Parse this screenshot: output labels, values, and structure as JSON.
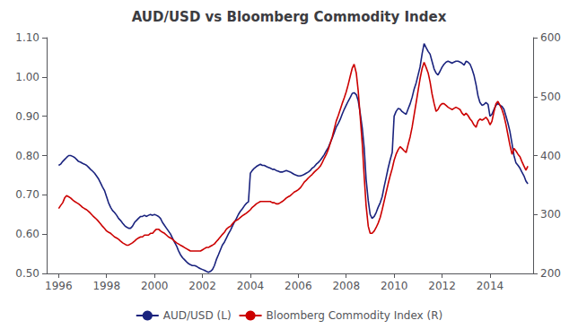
{
  "chart_data": {
    "type": "line",
    "title": "AUD/USD vs Bloomberg Commodity Index",
    "x": [
      1996.0,
      1996.08,
      1996.17,
      1996.25,
      1996.33,
      1996.42,
      1996.5,
      1996.58,
      1996.67,
      1996.75,
      1996.83,
      1996.92,
      1997.0,
      1997.08,
      1997.17,
      1997.25,
      1997.33,
      1997.42,
      1997.5,
      1997.58,
      1997.67,
      1997.75,
      1997.83,
      1997.92,
      1998.0,
      1998.08,
      1998.17,
      1998.25,
      1998.33,
      1998.42,
      1998.5,
      1998.58,
      1998.67,
      1998.75,
      1998.83,
      1998.92,
      1999.0,
      1999.08,
      1999.17,
      1999.25,
      1999.33,
      1999.42,
      1999.5,
      1999.58,
      1999.67,
      1999.75,
      1999.83,
      1999.92,
      2000.0,
      2000.08,
      2000.17,
      2000.25,
      2000.33,
      2000.42,
      2000.5,
      2000.58,
      2000.67,
      2000.75,
      2000.83,
      2000.92,
      2001.0,
      2001.08,
      2001.17,
      2001.25,
      2001.33,
      2001.42,
      2001.5,
      2001.58,
      2001.67,
      2001.75,
      2001.83,
      2001.92,
      2002.0,
      2002.08,
      2002.17,
      2002.25,
      2002.33,
      2002.42,
      2002.5,
      2002.58,
      2002.67,
      2002.75,
      2002.83,
      2002.92,
      2003.0,
      2003.08,
      2003.17,
      2003.25,
      2003.33,
      2003.42,
      2003.5,
      2003.58,
      2003.67,
      2003.75,
      2003.83,
      2003.92,
      2004.0,
      2004.08,
      2004.17,
      2004.25,
      2004.33,
      2004.42,
      2004.5,
      2004.58,
      2004.67,
      2004.75,
      2004.83,
      2004.92,
      2005.0,
      2005.08,
      2005.17,
      2005.25,
      2005.33,
      2005.42,
      2005.5,
      2005.58,
      2005.67,
      2005.75,
      2005.83,
      2005.92,
      2006.0,
      2006.08,
      2006.17,
      2006.25,
      2006.33,
      2006.42,
      2006.5,
      2006.58,
      2006.67,
      2006.75,
      2006.83,
      2006.92,
      2007.0,
      2007.08,
      2007.17,
      2007.25,
      2007.33,
      2007.42,
      2007.5,
      2007.58,
      2007.67,
      2007.75,
      2007.83,
      2007.92,
      2008.0,
      2008.08,
      2008.17,
      2008.25,
      2008.33,
      2008.42,
      2008.5,
      2008.58,
      2008.67,
      2008.75,
      2008.83,
      2008.92,
      2009.0,
      2009.08,
      2009.17,
      2009.25,
      2009.33,
      2009.42,
      2009.5,
      2009.58,
      2009.67,
      2009.75,
      2009.83,
      2009.92,
      2010.0,
      2010.08,
      2010.17,
      2010.25,
      2010.33,
      2010.42,
      2010.5,
      2010.58,
      2010.67,
      2010.75,
      2010.83,
      2010.92,
      2011.0,
      2011.08,
      2011.17,
      2011.25,
      2011.33,
      2011.42,
      2011.5,
      2011.58,
      2011.67,
      2011.75,
      2011.83,
      2011.92,
      2012.0,
      2012.08,
      2012.17,
      2012.25,
      2012.33,
      2012.42,
      2012.5,
      2012.58,
      2012.67,
      2012.75,
      2012.83,
      2012.92,
      2013.0,
      2013.08,
      2013.17,
      2013.25,
      2013.33,
      2013.42,
      2013.5,
      2013.58,
      2013.67,
      2013.75,
      2013.83,
      2013.92,
      2014.0,
      2014.08,
      2014.17,
      2014.25,
      2014.33,
      2014.42,
      2014.5,
      2014.58,
      2014.67,
      2014.75,
      2014.83,
      2014.92,
      2015.0,
      2015.08,
      2015.17,
      2015.25,
      2015.33,
      2015.42,
      2015.5,
      2015.58
    ],
    "series": [
      {
        "name": "AUD/USD (L)",
        "color": "#1a237e",
        "axis": "y",
        "values": [
          0.775,
          0.778,
          0.785,
          0.79,
          0.795,
          0.8,
          0.8,
          0.798,
          0.795,
          0.79,
          0.785,
          0.783,
          0.78,
          0.778,
          0.775,
          0.77,
          0.765,
          0.76,
          0.755,
          0.748,
          0.74,
          0.73,
          0.72,
          0.71,
          0.695,
          0.68,
          0.668,
          0.66,
          0.655,
          0.648,
          0.64,
          0.635,
          0.628,
          0.622,
          0.618,
          0.615,
          0.615,
          0.62,
          0.63,
          0.635,
          0.64,
          0.645,
          0.645,
          0.648,
          0.645,
          0.648,
          0.65,
          0.648,
          0.65,
          0.648,
          0.645,
          0.64,
          0.63,
          0.622,
          0.615,
          0.608,
          0.6,
          0.59,
          0.58,
          0.57,
          0.558,
          0.548,
          0.54,
          0.535,
          0.53,
          0.525,
          0.522,
          0.52,
          0.52,
          0.518,
          0.515,
          0.512,
          0.51,
          0.508,
          0.505,
          0.503,
          0.505,
          0.51,
          0.52,
          0.535,
          0.548,
          0.56,
          0.572,
          0.58,
          0.59,
          0.6,
          0.61,
          0.62,
          0.63,
          0.64,
          0.65,
          0.658,
          0.665,
          0.672,
          0.678,
          0.682,
          0.755,
          0.762,
          0.768,
          0.772,
          0.775,
          0.778,
          0.775,
          0.775,
          0.772,
          0.77,
          0.768,
          0.765,
          0.765,
          0.762,
          0.76,
          0.758,
          0.758,
          0.76,
          0.762,
          0.76,
          0.758,
          0.755,
          0.752,
          0.75,
          0.748,
          0.748,
          0.75,
          0.752,
          0.755,
          0.758,
          0.762,
          0.768,
          0.772,
          0.778,
          0.782,
          0.788,
          0.795,
          0.802,
          0.812,
          0.82,
          0.832,
          0.845,
          0.858,
          0.872,
          0.882,
          0.892,
          0.905,
          0.918,
          0.928,
          0.938,
          0.948,
          0.958,
          0.96,
          0.955,
          0.94,
          0.91,
          0.87,
          0.82,
          0.74,
          0.685,
          0.65,
          0.64,
          0.645,
          0.655,
          0.668,
          0.68,
          0.695,
          0.72,
          0.745,
          0.768,
          0.788,
          0.808,
          0.9,
          0.912,
          0.92,
          0.918,
          0.912,
          0.908,
          0.905,
          0.918,
          0.932,
          0.948,
          0.968,
          0.985,
          1.005,
          1.025,
          1.06,
          1.085,
          1.075,
          1.065,
          1.058,
          1.04,
          1.02,
          1.01,
          1.005,
          1.015,
          1.025,
          1.032,
          1.038,
          1.04,
          1.038,
          1.035,
          1.038,
          1.04,
          1.04,
          1.038,
          1.035,
          1.03,
          1.04,
          1.038,
          1.032,
          1.02,
          1.005,
          0.98,
          0.952,
          0.935,
          0.928,
          0.93,
          0.935,
          0.93,
          0.9,
          0.905,
          0.918,
          0.928,
          0.932,
          0.928,
          0.925,
          0.918,
          0.9,
          0.882,
          0.862,
          0.83,
          0.8,
          0.782,
          0.775,
          0.768,
          0.758,
          0.748,
          0.735,
          0.728
        ]
      },
      {
        "name": "Bloomberg Commodity Index (R)",
        "color": "#cc0000",
        "axis": "y2",
        "values": [
          310,
          315,
          320,
          328,
          332,
          330,
          328,
          325,
          322,
          320,
          318,
          315,
          312,
          310,
          308,
          305,
          302,
          298,
          295,
          292,
          288,
          284,
          280,
          276,
          272,
          270,
          268,
          265,
          262,
          260,
          258,
          255,
          252,
          250,
          248,
          248,
          250,
          252,
          255,
          258,
          260,
          262,
          262,
          265,
          265,
          265,
          268,
          268,
          272,
          275,
          275,
          272,
          270,
          268,
          265,
          262,
          260,
          258,
          255,
          252,
          250,
          248,
          246,
          244,
          242,
          240,
          238,
          238,
          238,
          238,
          238,
          238,
          240,
          242,
          244,
          244,
          246,
          248,
          250,
          254,
          258,
          262,
          266,
          270,
          275,
          278,
          280,
          284,
          288,
          290,
          292,
          295,
          298,
          300,
          302,
          305,
          308,
          312,
          315,
          318,
          320,
          322,
          322,
          322,
          322,
          322,
          322,
          320,
          320,
          318,
          318,
          320,
          322,
          325,
          328,
          330,
          332,
          335,
          338,
          340,
          342,
          345,
          350,
          355,
          358,
          362,
          365,
          368,
          372,
          375,
          378,
          382,
          388,
          395,
          402,
          410,
          420,
          432,
          445,
          458,
          468,
          478,
          488,
          498,
          508,
          520,
          535,
          548,
          555,
          540,
          510,
          468,
          420,
          365,
          315,
          280,
          268,
          268,
          272,
          278,
          285,
          295,
          308,
          322,
          338,
          352,
          365,
          378,
          392,
          402,
          410,
          415,
          412,
          408,
          405,
          418,
          432,
          448,
          468,
          490,
          510,
          530,
          548,
          558,
          550,
          540,
          525,
          505,
          488,
          475,
          478,
          485,
          488,
          488,
          485,
          482,
          480,
          478,
          480,
          482,
          480,
          478,
          472,
          468,
          472,
          468,
          462,
          458,
          452,
          448,
          458,
          462,
          460,
          462,
          465,
          460,
          452,
          458,
          475,
          488,
          492,
          485,
          478,
          468,
          452,
          435,
          418,
          402,
          412,
          408,
          402,
          398,
          390,
          382,
          375,
          382
        ]
      }
    ],
    "xlim": [
      1995.5,
      2015.8
    ],
    "xticks": [
      1996,
      1998,
      2000,
      2002,
      2004,
      2006,
      2008,
      2010,
      2012,
      2014
    ],
    "ylim": [
      0.5,
      1.1
    ],
    "yticks": [
      {
        "value": 0.5,
        "label": "0.50"
      },
      {
        "value": 0.6,
        "label": "0.60"
      },
      {
        "value": 0.7,
        "label": "0.70"
      },
      {
        "value": 0.8,
        "label": "0.80"
      },
      {
        "value": 0.9,
        "label": "0.90"
      },
      {
        "value": 1.0,
        "label": "1.00"
      },
      {
        "value": 1.1,
        "label": "1.10"
      }
    ],
    "y2lim": [
      200,
      600
    ],
    "y2ticks": [
      200,
      300,
      400,
      500,
      600
    ],
    "grid": false,
    "legend": "lower center"
  }
}
